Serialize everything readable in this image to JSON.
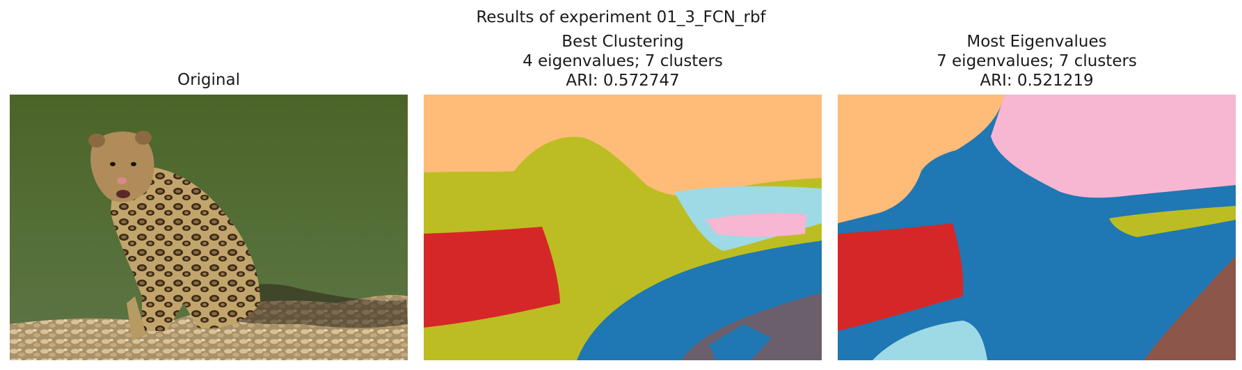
{
  "figure": {
    "suptitle": "Results of experiment 01_3_FCN_rbf"
  },
  "panels": [
    {
      "title_lines": [
        "Original"
      ]
    },
    {
      "title_lines": [
        "Best Clustering",
        "4 eigenvalues; 7 clusters",
        "ARI: 0.572747"
      ]
    },
    {
      "title_lines": [
        "Most Eigenvalues",
        "7 eigenvalues; 7 clusters",
        "ARI: 0.521219"
      ]
    }
  ],
  "colors": {
    "water_green": "#4f6a2e",
    "rock_beige": "#c9b184",
    "leopard_tan": "#b89a63",
    "cluster_orange": "#ffbb78",
    "cluster_olive": "#bcbd22",
    "cluster_red": "#d62728",
    "cluster_blue": "#1f77b4",
    "cluster_brown": "#8c564b",
    "cluster_lightblue": "#9edae5",
    "cluster_pink": "#f7b6d2"
  }
}
